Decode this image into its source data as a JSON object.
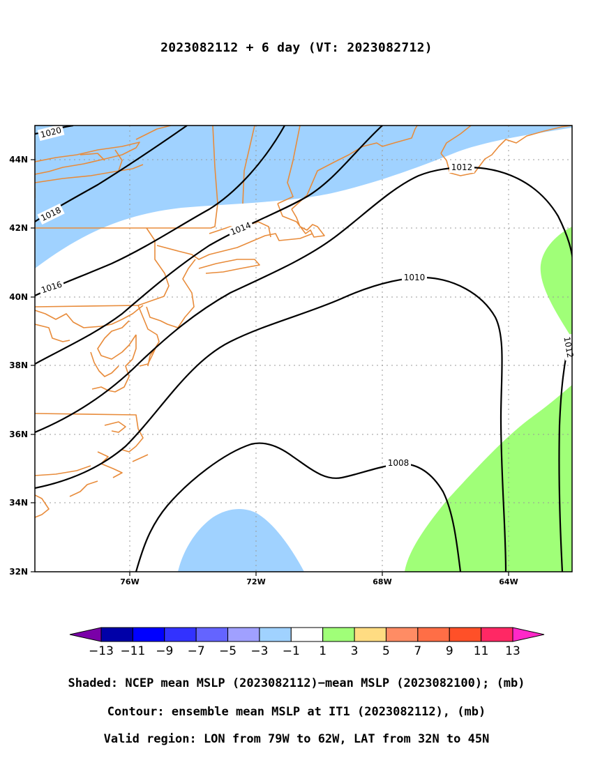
{
  "title": "2023082112 + 6 day (VT: 2023082712)",
  "axes": {
    "lat_ticks": [
      "44N",
      "42N",
      "40N",
      "38N",
      "36N",
      "34N",
      "32N"
    ],
    "lon_ticks": [
      "76W",
      "72W",
      "68W",
      "64W"
    ],
    "lon_range": [
      -79,
      -62
    ],
    "lat_range": [
      32,
      45
    ],
    "grid": true
  },
  "contours": {
    "labels": [
      "1020",
      "1018",
      "1016",
      "1014",
      "1012",
      "1012",
      "1010",
      "1008"
    ]
  },
  "colorbar": {
    "colors": [
      "#7a00a8",
      "#0000a8",
      "#0000ff",
      "#3232ff",
      "#6464ff",
      "#a0a0ff",
      "#a0d2ff",
      "#ffffff",
      "#a0ff78",
      "#ffdc82",
      "#ff8c64",
      "#ff6e46",
      "#ff5028",
      "#ff2864",
      "#ff28c8"
    ],
    "labels": [
      "−13",
      "−11",
      "−9",
      "−7",
      "−5",
      "−3",
      "−1",
      "1",
      "3",
      "5",
      "7",
      "9",
      "11",
      "13"
    ]
  },
  "captions": {
    "shaded": "Shaded: NCEP mean MSLP (2023082112)−mean MSLP (2023082100); (mb)",
    "contour": "Contour: ensemble mean MSLP at IT1 (2023082112), (mb)",
    "region": "Valid region: LON from 79W to 62W, LAT from 32N to 45N"
  },
  "colors": {
    "coast": "#e88b3a",
    "negative_fill": "#a0d2ff",
    "positive_fill": "#a0ff78",
    "contour": "#000000",
    "grid": "#999999"
  }
}
